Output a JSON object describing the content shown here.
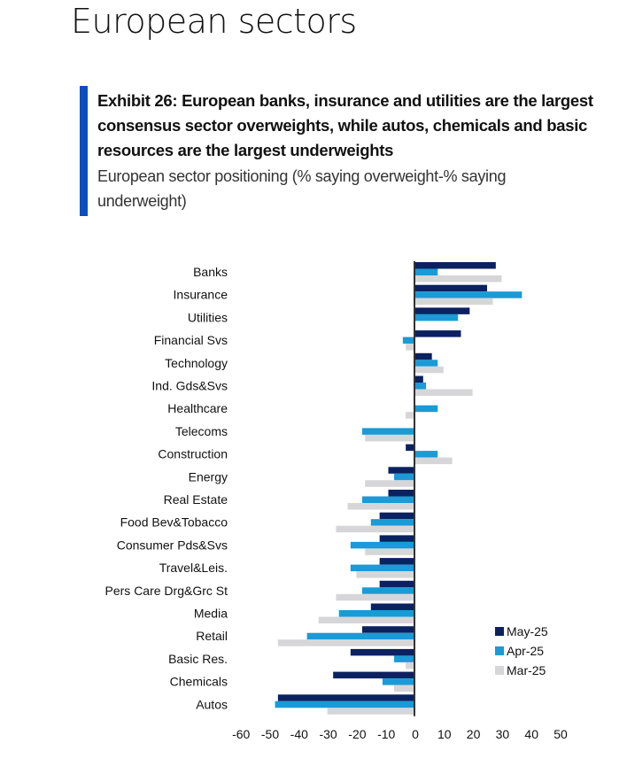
{
  "page": {
    "title": "European sectors"
  },
  "exhibit": {
    "title": "Exhibit 26: European banks, insurance and utilities are the largest consensus sector overweights, while autos, chemicals and basic resources are the largest underweights",
    "subtitle": "European sector positioning (% saying overweight-% saying underweight)",
    "accent_color": "#0a4fbf"
  },
  "chart_data": {
    "type": "bar",
    "orientation": "horizontal",
    "title": "European sector positioning (% saying overweight-% saying underweight)",
    "xlabel": "",
    "ylabel": "",
    "xlim": [
      -60,
      50
    ],
    "x_ticks": [
      -60,
      -50,
      -40,
      -30,
      -20,
      -10,
      0,
      10,
      20,
      30,
      40,
      50
    ],
    "grid": false,
    "legend_position": "bottom-right",
    "categories": [
      "Banks",
      "Insurance",
      "Utilities",
      "Financial Svs",
      "Technology",
      "Ind. Gds&Svs",
      "Healthcare",
      "Telecoms",
      "Construction",
      "Energy",
      "Real Estate",
      "Food Bev&Tobacco",
      "Consumer Pds&Svs",
      "Travel&Leis.",
      "Pers Care Drg&Grc St",
      "Media",
      "Retail",
      "Basic Res.",
      "Chemicals",
      "Autos"
    ],
    "series": [
      {
        "name": "May-25",
        "color": "#0b2160",
        "values": [
          28,
          25,
          19,
          16,
          6,
          3,
          0,
          0,
          -3,
          -9,
          -9,
          -12,
          -12,
          -12,
          -12,
          -15,
          -18,
          -22,
          -28,
          -47
        ]
      },
      {
        "name": "Apr-25",
        "color": "#1a9ad6",
        "values": [
          8,
          37,
          15,
          -4,
          8,
          4,
          8,
          -18,
          8,
          -7,
          -18,
          -15,
          -22,
          -22,
          -18,
          -26,
          -37,
          -7,
          -11,
          -48
        ]
      },
      {
        "name": "Mar-25",
        "color": "#d6d6d8",
        "values": [
          30,
          27,
          0,
          -3,
          10,
          20,
          -3,
          -17,
          13,
          -17,
          -23,
          -27,
          -17,
          -20,
          -27,
          -33,
          -47,
          -3,
          -7,
          -30
        ]
      }
    ]
  }
}
